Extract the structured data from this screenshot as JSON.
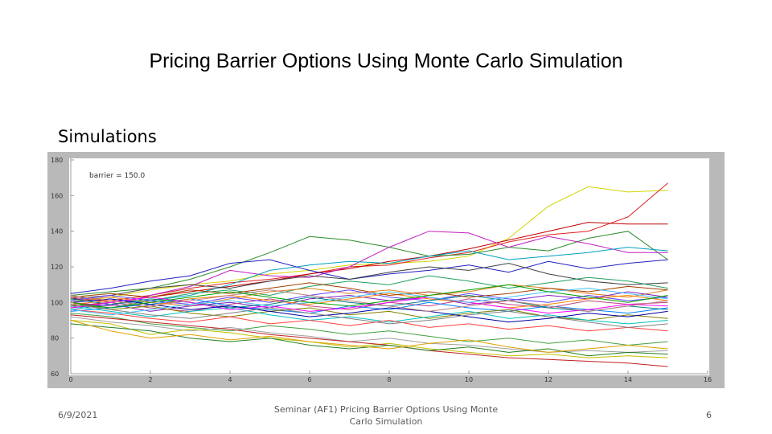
{
  "slide": {
    "title": "Pricing Barrier Options Using Monte Carlo Simulation",
    "subtitle": "Simulations",
    "footer_date": "6/9/2021",
    "footer_center": "Seminar (AF1) Pricing Barrier Options Using Monte Carlo Simulation",
    "page_number": "6"
  },
  "chart_data": {
    "type": "line",
    "annotation": "barrier = 150.0",
    "xlim": [
      0,
      16
    ],
    "ylim": [
      60,
      180
    ],
    "x_ticks": [
      "0",
      "2",
      "4",
      "6",
      "8",
      "10",
      "12",
      "14",
      "16"
    ],
    "y_ticks": [
      "60",
      "80",
      "100",
      "120",
      "140",
      "160",
      "180"
    ],
    "x": [
      0,
      1,
      2,
      3,
      4,
      5,
      6,
      7,
      8,
      9,
      10,
      11,
      12,
      13,
      14,
      15
    ],
    "series": [
      {
        "color": "#d4d400",
        "values": [
          100,
          103,
          107,
          110,
          112,
          116,
          118,
          121,
          122,
          123,
          126,
          136,
          154,
          165,
          162,
          163
        ]
      },
      {
        "color": "#e02020",
        "values": [
          102,
          101,
          104,
          108,
          111,
          113,
          116,
          120,
          121,
          125,
          128,
          134,
          138,
          140,
          148,
          167
        ]
      },
      {
        "color": "#c00000",
        "values": [
          98,
          100,
          103,
          106,
          109,
          112,
          116,
          119,
          123,
          126,
          130,
          135,
          140,
          145,
          144,
          144
        ]
      },
      {
        "color": "#2a8a2a",
        "values": [
          104,
          106,
          108,
          113,
          120,
          128,
          137,
          135,
          131,
          126,
          127,
          131,
          129,
          136,
          140,
          124
        ]
      },
      {
        "color": "#c020c0",
        "values": [
          100,
          98,
          104,
          109,
          118,
          115,
          114,
          120,
          131,
          140,
          139,
          131,
          137,
          133,
          128,
          128
        ]
      },
      {
        "color": "#00a0c0",
        "values": [
          96,
          99,
          101,
          104,
          110,
          118,
          121,
          123,
          122,
          126,
          129,
          124,
          126,
          128,
          131,
          129
        ]
      },
      {
        "color": "#2020c0",
        "values": [
          105,
          108,
          112,
          115,
          122,
          124,
          118,
          113,
          116,
          118,
          121,
          117,
          123,
          119,
          122,
          124
        ]
      },
      {
        "color": "#404040",
        "values": [
          102,
          104,
          108,
          110,
          108,
          112,
          115,
          113,
          117,
          120,
          118,
          122,
          116,
          112,
          110,
          111
        ]
      },
      {
        "color": "#20a060",
        "values": [
          99,
          97,
          101,
          105,
          107,
          104,
          109,
          112,
          110,
          115,
          112,
          108,
          111,
          114,
          112,
          108
        ]
      },
      {
        "color": "#e08020",
        "values": [
          101,
          103,
          100,
          98,
          102,
          106,
          108,
          105,
          107,
          104,
          106,
          110,
          108,
          105,
          103,
          107
        ]
      },
      {
        "color": "#8020c0",
        "values": [
          97,
          99,
          95,
          98,
          100,
          97,
          102,
          104,
          101,
          103,
          99,
          101,
          104,
          102,
          106,
          103
        ]
      },
      {
        "color": "#c04080",
        "values": [
          103,
          100,
          97,
          95,
          99,
          102,
          98,
          96,
          100,
          98,
          102,
          99,
          97,
          101,
          99,
          100
        ]
      },
      {
        "color": "#0080ff",
        "values": [
          95,
          97,
          99,
          102,
          98,
          96,
          94,
          98,
          96,
          100,
          97,
          95,
          98,
          96,
          94,
          97
        ]
      },
      {
        "color": "#808000",
        "values": [
          100,
          96,
          98,
          94,
          92,
          95,
          97,
          93,
          95,
          91,
          94,
          96,
          92,
          90,
          93,
          91
        ]
      },
      {
        "color": "#00c0c0",
        "values": [
          98,
          95,
          92,
          95,
          97,
          93,
          90,
          92,
          89,
          92,
          95,
          91,
          93,
          90,
          88,
          90
        ]
      },
      {
        "color": "#ff4040",
        "values": [
          96,
          94,
          91,
          89,
          92,
          88,
          90,
          87,
          90,
          86,
          88,
          85,
          87,
          84,
          86,
          84
        ]
      },
      {
        "color": "#40a040",
        "values": [
          94,
          92,
          88,
          86,
          84,
          87,
          85,
          82,
          84,
          81,
          78,
          80,
          77,
          79,
          76,
          78
        ]
      },
      {
        "color": "#a0a0a0",
        "values": [
          92,
          89,
          87,
          84,
          86,
          83,
          81,
          78,
          80,
          77,
          76,
          74,
          72,
          73,
          72,
          73
        ]
      },
      {
        "color": "#c0c000",
        "values": [
          90,
          88,
          82,
          85,
          83,
          80,
          78,
          75,
          77,
          74,
          72,
          70,
          71,
          69,
          70,
          69
        ]
      },
      {
        "color": "#c02020",
        "values": [
          93,
          91,
          89,
          87,
          85,
          82,
          80,
          78,
          76,
          73,
          71,
          69,
          68,
          67,
          66,
          64
        ]
      },
      {
        "color": "#208020",
        "values": [
          88,
          86,
          84,
          80,
          78,
          80,
          76,
          74,
          76,
          73,
          75,
          72,
          74,
          70,
          72,
          71
        ]
      },
      {
        "color": "#e0a000",
        "values": [
          90,
          84,
          80,
          82,
          79,
          81,
          78,
          76,
          74,
          77,
          79,
          75,
          72,
          74,
          76,
          74
        ]
      },
      {
        "color": "#6040ff",
        "values": [
          101,
          104,
          101,
          99,
          103,
          100,
          104,
          107,
          103,
          101,
          105,
          102,
          100,
          104,
          101,
          103
        ]
      },
      {
        "color": "#ff8000",
        "values": [
          99,
          101,
          98,
          102,
          104,
          101,
          99,
          102,
          105,
          102,
          100,
          97,
          99,
          102,
          104,
          101
        ]
      },
      {
        "color": "#008080",
        "values": [
          102,
          99,
          102,
          100,
          97,
          99,
          103,
          100,
          98,
          101,
          104,
          101,
          97,
          95,
          98,
          96
        ]
      },
      {
        "color": "#ff00ff",
        "values": [
          97,
          100,
          103,
          100,
          96,
          98,
          95,
          97,
          100,
          103,
          100,
          97,
          94,
          96,
          99,
          98
        ]
      },
      {
        "color": "#0000a0",
        "values": [
          100,
          102,
          99,
          96,
          98,
          95,
          92,
          94,
          97,
          95,
          92,
          89,
          91,
          94,
          92,
          95
        ]
      },
      {
        "color": "#a04000",
        "values": [
          103,
          105,
          103,
          107,
          105,
          108,
          111,
          108,
          104,
          106,
          103,
          105,
          108,
          106,
          109,
          107
        ]
      },
      {
        "color": "#40c0ff",
        "values": [
          96,
          93,
          96,
          99,
          101,
          98,
          100,
          103,
          106,
          103,
          100,
          103,
          106,
          108,
          105,
          102
        ]
      },
      {
        "color": "#808080",
        "values": [
          99,
          96,
          93,
          91,
          94,
          97,
          94,
          91,
          88,
          90,
          93,
          95,
          92,
          89,
          86,
          88
        ]
      },
      {
        "color": "#c08080",
        "values": [
          104,
          101,
          98,
          101,
          104,
          107,
          104,
          101,
          98,
          95,
          98,
          101,
          98,
          95,
          98,
          101
        ]
      },
      {
        "color": "#00a000",
        "values": [
          100,
          97,
          100,
          103,
          106,
          103,
          100,
          98,
          101,
          104,
          107,
          110,
          106,
          103,
          100,
          104
        ]
      }
    ]
  }
}
